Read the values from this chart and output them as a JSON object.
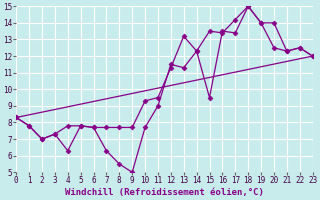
{
  "xlabel": "Windchill (Refroidissement éolien,°C)",
  "bg_color": "#c8ecec",
  "grid_color": "#ffffff",
  "line_color": "#880088",
  "xlim": [
    0,
    23
  ],
  "ylim": [
    5,
    15
  ],
  "xticks": [
    0,
    1,
    2,
    3,
    4,
    5,
    6,
    7,
    8,
    9,
    10,
    11,
    12,
    13,
    14,
    15,
    16,
    17,
    18,
    19,
    20,
    21,
    22,
    23
  ],
  "yticks": [
    5,
    6,
    7,
    8,
    9,
    10,
    11,
    12,
    13,
    14,
    15
  ],
  "series1_x": [
    0,
    1,
    2,
    3,
    4,
    5,
    6,
    7,
    8,
    9,
    10,
    11,
    12,
    13,
    14,
    15,
    16,
    17,
    18,
    19,
    20,
    21,
    22,
    23
  ],
  "series1_y": [
    8.3,
    7.8,
    7.0,
    7.3,
    7.8,
    7.8,
    7.7,
    7.7,
    7.7,
    7.7,
    9.3,
    9.5,
    11.3,
    13.2,
    12.3,
    13.5,
    13.4,
    14.2,
    15.0,
    14.0,
    14.0,
    12.3,
    12.5,
    12.0
  ],
  "series2_x": [
    0,
    1,
    2,
    3,
    4,
    5,
    6,
    7,
    8,
    9,
    10,
    11,
    12,
    13,
    14,
    15,
    16,
    17,
    18,
    19,
    20,
    21,
    22,
    23
  ],
  "series2_y": [
    8.3,
    7.8,
    7.0,
    7.3,
    6.3,
    7.8,
    7.7,
    6.3,
    5.5,
    5.0,
    7.7,
    9.0,
    11.5,
    11.3,
    12.3,
    9.5,
    13.5,
    13.4,
    15.0,
    14.0,
    12.5,
    12.3,
    12.5,
    12.0
  ],
  "series3_x": [
    0,
    23
  ],
  "series3_y": [
    8.3,
    12.0
  ],
  "marker": "D",
  "markersize": 2.5,
  "linewidth": 0.9,
  "xlabel_fontsize": 6.5,
  "tick_fontsize": 5.5
}
